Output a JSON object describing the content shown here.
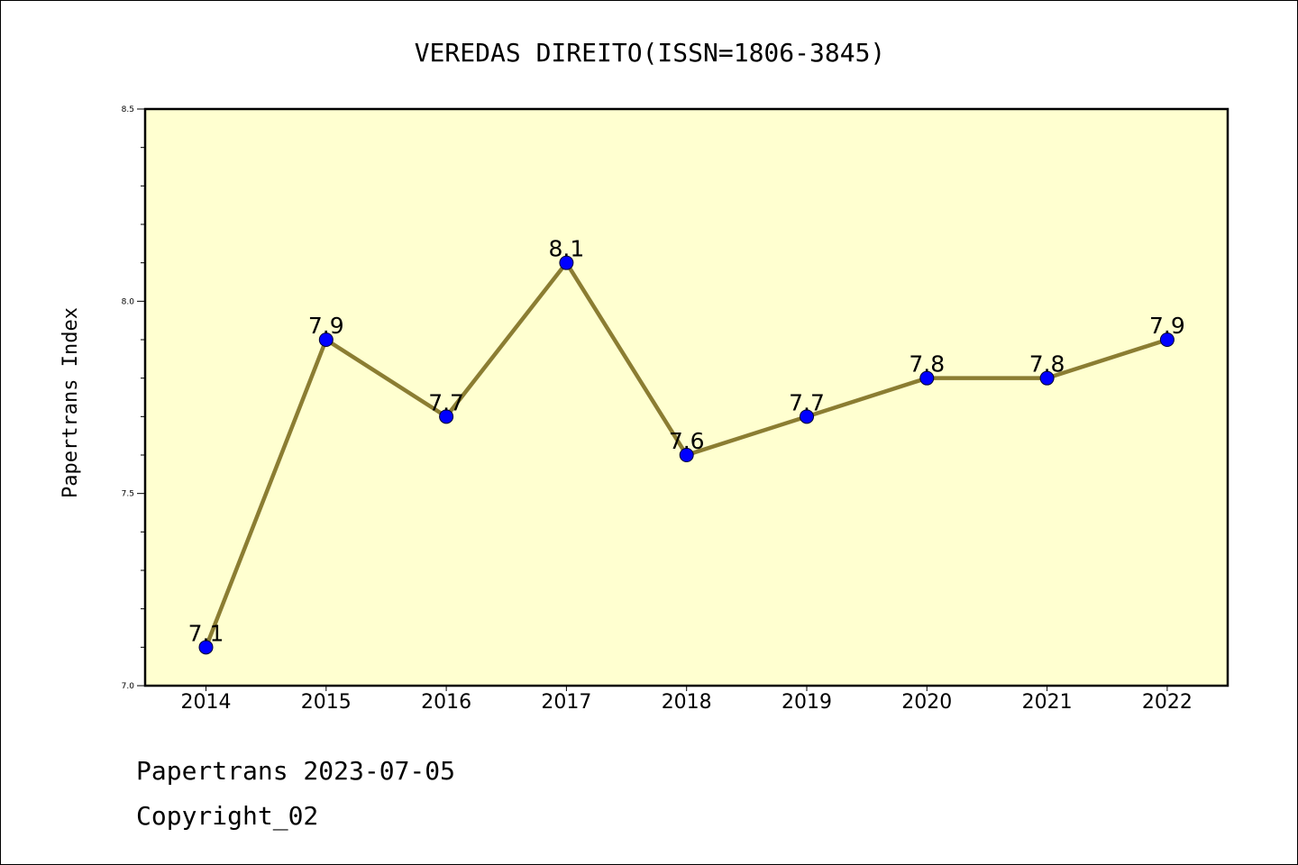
{
  "footer": {
    "line1": "Papertrans 2023-07-05",
    "line2": "Copyright_02"
  },
  "colors": {
    "plot_background": "#ffffd0",
    "line": "#8b7d32",
    "marker": "#0000ff",
    "axes": "#000000"
  },
  "chart_data": {
    "type": "line",
    "title": "VEREDAS DIREITO(ISSN=1806-3845)",
    "xlabel": "",
    "ylabel": "Papertrans Index",
    "categories": [
      "2014",
      "2015",
      "2016",
      "2017",
      "2018",
      "2019",
      "2020",
      "2021",
      "2022"
    ],
    "series": [
      {
        "values": [
          7.1,
          7.9,
          7.7,
          8.1,
          7.6,
          7.7,
          7.8,
          7.8,
          7.9
        ],
        "labels": [
          "7.1",
          "7.9",
          "7.7",
          "8.1",
          "7.6",
          "7.7",
          "7.8",
          "7.8",
          "7.9"
        ]
      }
    ],
    "ylim": [
      7.0,
      8.5
    ],
    "yticks": [
      "7.0",
      "7.5",
      "8.0",
      "8.5"
    ],
    "grid": false,
    "legend": "none"
  }
}
